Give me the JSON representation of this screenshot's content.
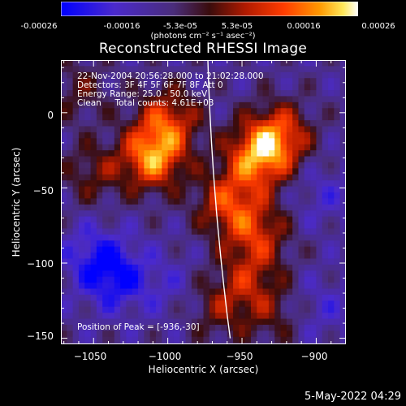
{
  "colorbar": {
    "min": -0.00026,
    "max": 0.00026,
    "ticks": [
      "-0.00026",
      "-0.00016",
      "-5.3e-05",
      "5.3e-05",
      "0.00016",
      "0.00026"
    ],
    "units_label": "(photons cm⁻² s⁻¹ asec⁻²)"
  },
  "chart_data": {
    "type": "heatmap",
    "title": "Reconstructed RHESSI Image",
    "xlabel": "Heliocentric X (arcsec)",
    "ylabel": "Heliocentric Y (arcsec)",
    "xlim": [
      -1072,
      -880
    ],
    "ylim": [
      -154,
      35
    ],
    "xticks": [
      -1050,
      -1000,
      -950,
      -900
    ],
    "yticks": [
      0,
      -50,
      -100,
      -150
    ],
    "xtick_labels": [
      "−1050",
      "−1000",
      "−950",
      "−900"
    ],
    "ytick_labels": [
      "0",
      "−50",
      "−100",
      "−150"
    ],
    "annotations": [
      "22-Nov-2004 20:56:28.000 to 21:02:28.000",
      "Detectors: 3F 4F 5F 6F 7F 8F Att 0",
      "Energy Range: 25.0 - 50.0 keV",
      "Clean     Total counts: 4.61E+03"
    ],
    "peak_label": "Position of Peak = [-936,-30]",
    "peak_position": [
      -936,
      -30
    ],
    "blobs": [
      {
        "x": -1010,
        "y": -30,
        "value": 0.00026
      },
      {
        "x": -1000,
        "y": -5,
        "value": 0.00018
      },
      {
        "x": -940,
        "y": -30,
        "value": 0.00024
      },
      {
        "x": -925,
        "y": -15,
        "value": 0.0002
      },
      {
        "x": -960,
        "y": -60,
        "value": 0.00018
      },
      {
        "x": -940,
        "y": -80,
        "value": 0.00016
      },
      {
        "x": -945,
        "y": -110,
        "value": 0.00012
      },
      {
        "x": -930,
        "y": -135,
        "value": 8e-05
      },
      {
        "x": -965,
        "y": -130,
        "value": 0.0001
      },
      {
        "x": -1050,
        "y": -40,
        "value": 0.0001
      },
      {
        "x": -1060,
        "y": 15,
        "value": 8e-05
      },
      {
        "x": -1035,
        "y": -110,
        "value": -0.00014
      },
      {
        "x": -1050,
        "y": -95,
        "value": -0.0001
      },
      {
        "x": -1000,
        "y": -115,
        "value": -5e-05
      },
      {
        "x": -895,
        "y": -55,
        "value": -6e-05
      },
      {
        "x": -895,
        "y": -130,
        "value": -6e-05
      }
    ]
  },
  "timestamp": "5-May-2022 04:29"
}
